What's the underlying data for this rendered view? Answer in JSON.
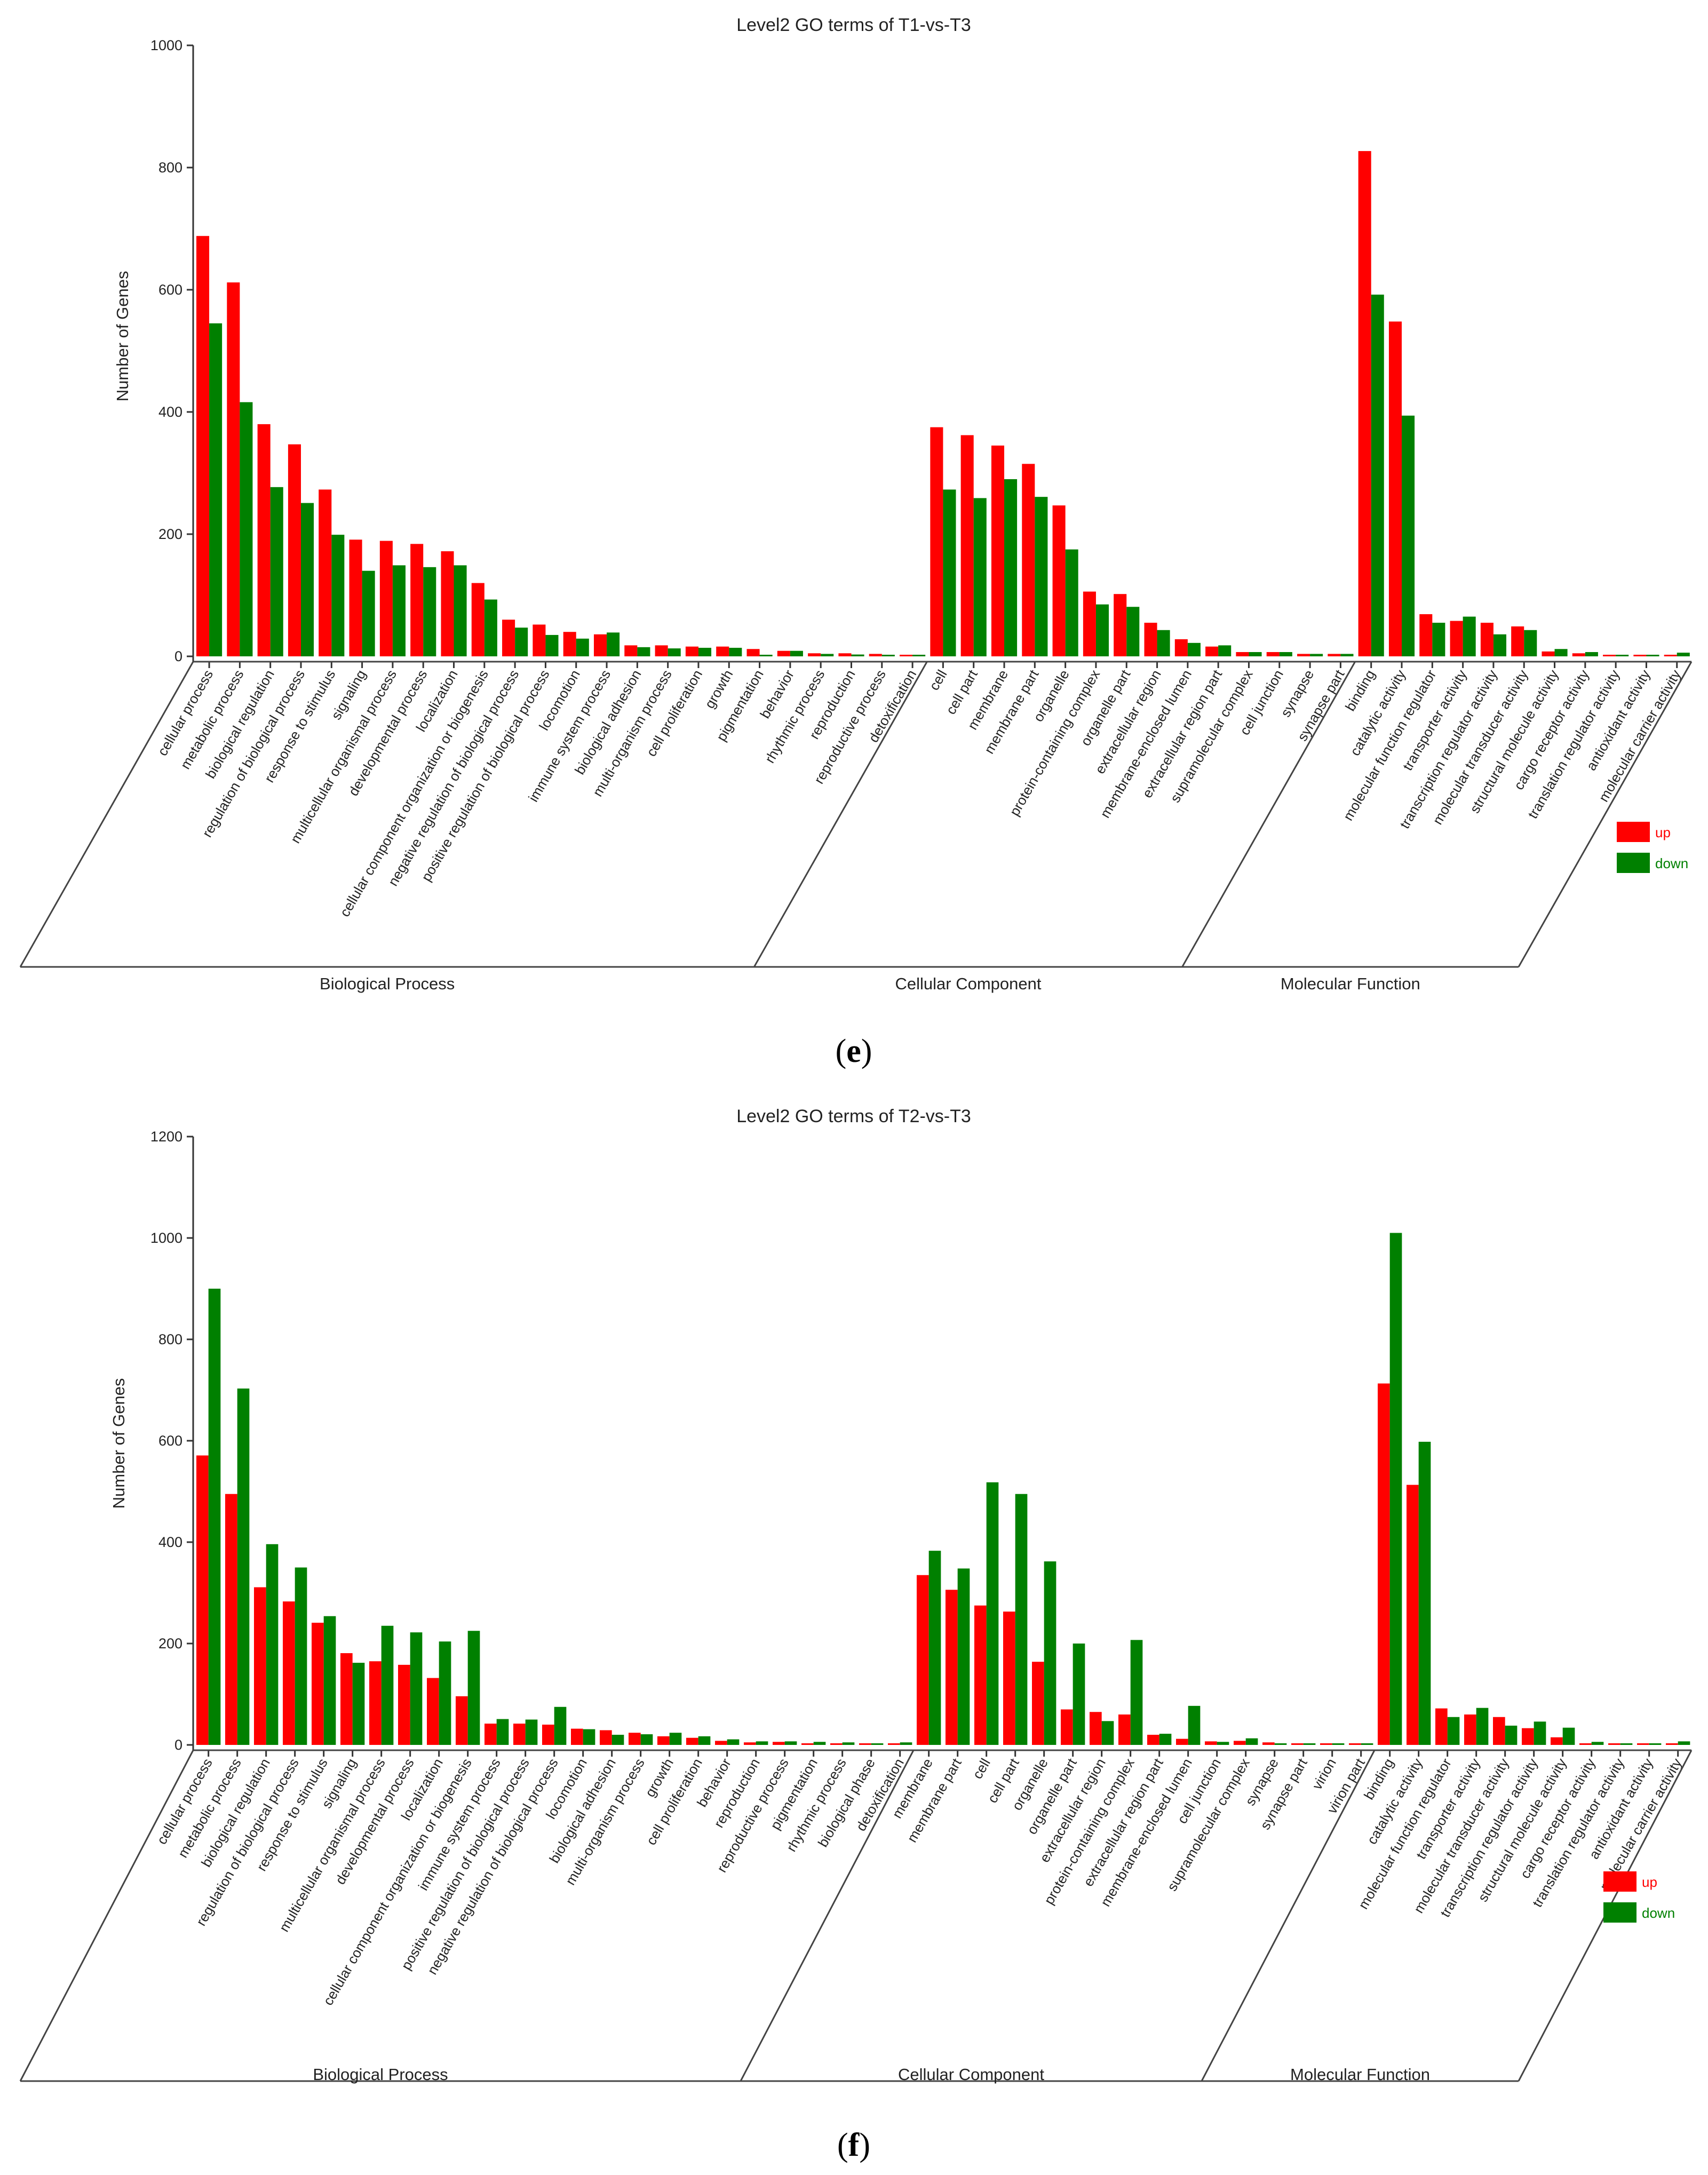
{
  "colors": {
    "up": "#ff0000",
    "down": "#008000"
  },
  "chart_data": [
    {
      "type": "bar",
      "panel_label": "e",
      "title": "Level2 GO terms of T1-vs-T3",
      "ylabel": "Number of Genes",
      "xlabel": "",
      "ylim": [
        0,
        1000
      ],
      "yticks": [
        0,
        200,
        400,
        600,
        800,
        1000
      ],
      "legend": {
        "position": "right",
        "entries": [
          "up",
          "down"
        ]
      },
      "groups": [
        {
          "name": "Biological Process",
          "count": 24
        },
        {
          "name": "Cellular Component",
          "count": 14
        },
        {
          "name": "Molecular Function",
          "count": 11
        }
      ],
      "categories": [
        "cellular process",
        "metabolic process",
        "biological regulation",
        "regulation of biological process",
        "response to stimulus",
        "signaling",
        "multicellular organismal process",
        "developmental process",
        "localization",
        "cellular component organization or biogenesis",
        "negative regulation of biological process",
        "positive regulation of biological process",
        "locomotion",
        "immune system process",
        "biological adhesion",
        "multi-organism process",
        "cell proliferation",
        "growth",
        "pigmentation",
        "behavior",
        "rhythmic process",
        "reproduction",
        "reproductive process",
        "detoxification",
        "cell",
        "cell part",
        "membrane",
        "membrane part",
        "organelle",
        "protein-containing complex",
        "organelle part",
        "extracellular region",
        "membrane-enclosed lumen",
        "extracellular region part",
        "supramolecular complex",
        "cell junction",
        "synapse",
        "synapse part",
        "binding",
        "catalytic activity",
        "molecular function regulator",
        "transporter activity",
        "transcription regulator activity",
        "molecular transducer activity",
        "structural molecule activity",
        "cargo receptor activity",
        "translation regulator activity",
        "antioxidant activity",
        "molecular carrier activity"
      ],
      "series": [
        {
          "name": "up",
          "values": [
            688,
            612,
            380,
            347,
            273,
            191,
            189,
            184,
            172,
            120,
            60,
            52,
            40,
            36,
            18,
            18,
            16,
            16,
            12,
            9,
            5,
            5,
            4,
            1,
            375,
            362,
            345,
            315,
            247,
            106,
            102,
            55,
            28,
            16,
            7,
            7,
            4,
            4,
            827,
            548,
            69,
            58,
            55,
            49,
            8,
            5,
            1,
            1,
            0
          ]
        },
        {
          "name": "down",
          "values": [
            545,
            416,
            277,
            251,
            199,
            140,
            149,
            146,
            149,
            93,
            47,
            35,
            29,
            39,
            15,
            13,
            14,
            14,
            2,
            9,
            4,
            3,
            2,
            1,
            273,
            259,
            290,
            261,
            175,
            85,
            81,
            43,
            22,
            18,
            7,
            7,
            4,
            4,
            592,
            394,
            55,
            65,
            36,
            43,
            12,
            7,
            1,
            1,
            6
          ]
        }
      ]
    },
    {
      "type": "bar",
      "panel_label": "f",
      "title": "Level2 GO terms of T2-vs-T3",
      "ylabel": "Number of Genes",
      "xlabel": "",
      "ylim": [
        0,
        1200
      ],
      "yticks": [
        0,
        200,
        400,
        600,
        800,
        1000,
        1200
      ],
      "legend": {
        "position": "right",
        "entries": [
          "up",
          "down"
        ]
      },
      "groups": [
        {
          "name": "Biological Process",
          "count": 25
        },
        {
          "name": "Cellular Component",
          "count": 16
        },
        {
          "name": "Molecular Function",
          "count": 11
        }
      ],
      "categories": [
        "cellular process",
        "metabolic process",
        "biological regulation",
        "regulation of biological process",
        "response to stimulus",
        "signaling",
        "multicellular organismal process",
        "developmental process",
        "localization",
        "cellular component organization or biogenesis",
        "immune system process",
        "positive regulation of biological process",
        "negative regulation of biological process",
        "locomotion",
        "biological adhesion",
        "multi-organism process",
        "growth",
        "cell proliferation",
        "behavior",
        "reproduction",
        "reproductive process",
        "pigmentation",
        "rhythmic process",
        "biological phase",
        "detoxification",
        "membrane",
        "membrane part",
        "cell",
        "cell part",
        "organelle",
        "organelle part",
        "extracellular region",
        "protein-containing complex",
        "extracellular region part",
        "membrane-enclosed lumen",
        "cell junction",
        "supramolecular complex",
        "synapse",
        "synapse part",
        "virion",
        "virion part",
        "binding",
        "catalytic activity",
        "molecular function regulator",
        "transporter activity",
        "molecular transducer activity",
        "transcription regulator activity",
        "structural molecule activity",
        "cargo receptor activity",
        "translation regulator activity",
        "antioxidant activity",
        "molecular carrier activity"
      ],
      "series": [
        {
          "name": "up",
          "values": [
            571,
            495,
            311,
            283,
            241,
            181,
            165,
            158,
            132,
            96,
            42,
            42,
            40,
            32,
            29,
            24,
            17,
            14,
            8,
            5,
            6,
            2,
            2,
            1,
            1,
            335,
            306,
            275,
            263,
            164,
            70,
            65,
            60,
            20,
            12,
            7,
            8,
            5,
            3,
            1,
            1,
            713,
            513,
            72,
            60,
            55,
            33,
            15,
            2,
            1,
            1,
            0
          ]
        },
        {
          "name": "down",
          "values": [
            900,
            703,
            396,
            350,
            254,
            162,
            235,
            222,
            204,
            225,
            51,
            50,
            75,
            31,
            20,
            21,
            24,
            17,
            11,
            7,
            7,
            6,
            5,
            1,
            5,
            383,
            348,
            518,
            495,
            362,
            200,
            47,
            207,
            22,
            77,
            6,
            13,
            3,
            3,
            1,
            1,
            1010,
            598,
            55,
            73,
            38,
            46,
            34,
            6,
            1,
            1,
            7
          ]
        }
      ]
    }
  ]
}
